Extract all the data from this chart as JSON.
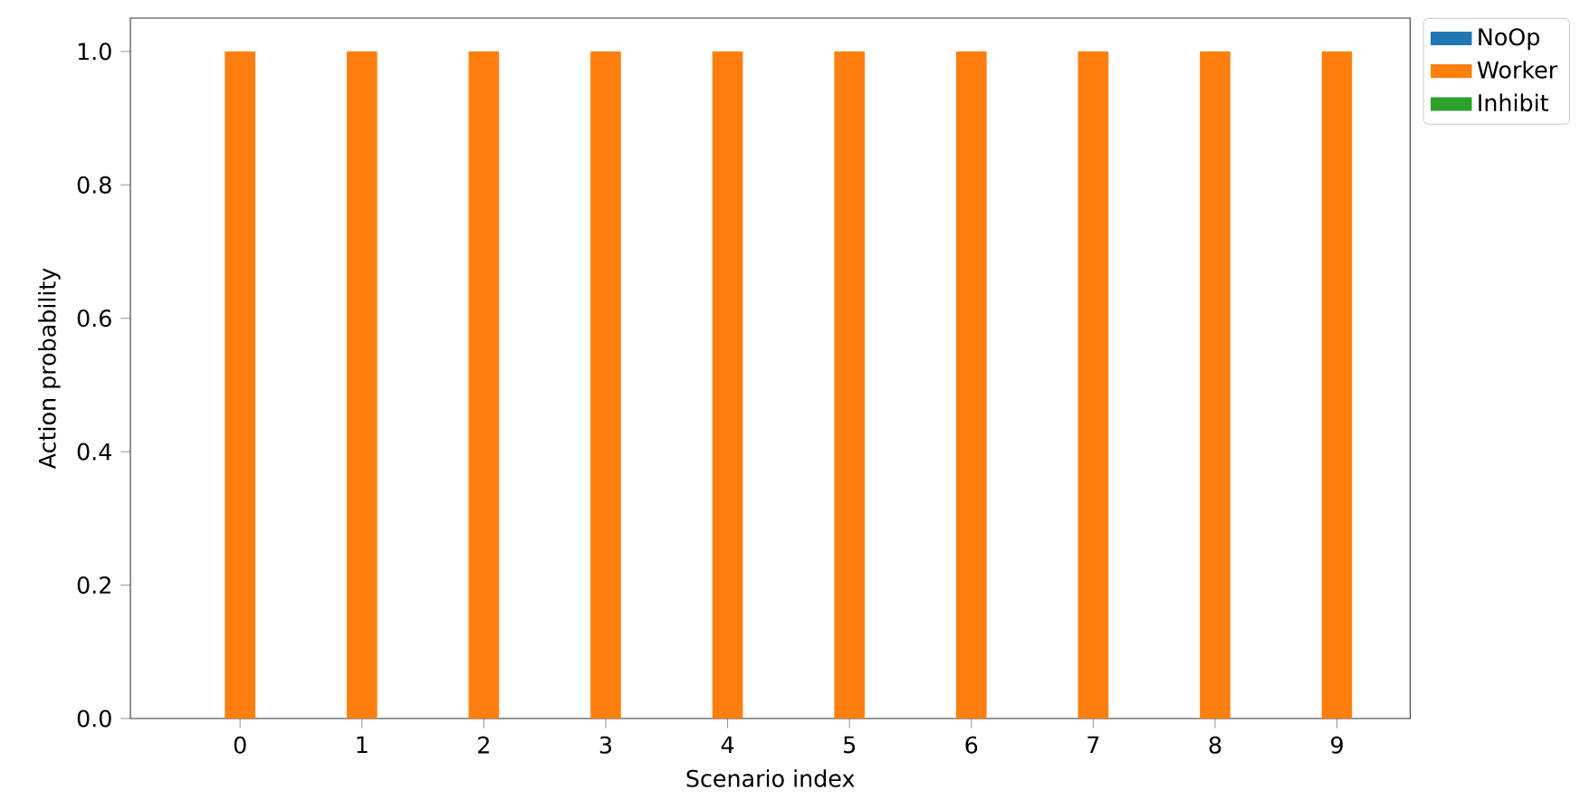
{
  "chart_data": {
    "type": "bar",
    "xlabel": "Scenario index",
    "ylabel": "Action probability",
    "categories": [
      "0",
      "1",
      "2",
      "3",
      "4",
      "5",
      "6",
      "7",
      "8",
      "9"
    ],
    "series": [
      {
        "name": "NoOp",
        "color": "#1f77b4",
        "values": [
          0,
          0,
          0,
          0,
          0,
          0,
          0,
          0,
          0,
          0
        ]
      },
      {
        "name": "Worker",
        "color": "#ff7f0e",
        "values": [
          1,
          1,
          1,
          1,
          1,
          1,
          1,
          1,
          1,
          1
        ]
      },
      {
        "name": "Inhibit",
        "color": "#2ca02c",
        "values": [
          0,
          0,
          0,
          0,
          0,
          0,
          0,
          0,
          0,
          0
        ]
      }
    ],
    "ylim": [
      0,
      1.05
    ],
    "yticks": [
      {
        "value": 0,
        "label": "0.0"
      },
      {
        "value": 0.2,
        "label": "0.2"
      },
      {
        "value": 0.4,
        "label": "0.4"
      },
      {
        "value": 0.6,
        "label": "0.6"
      },
      {
        "value": 0.8,
        "label": "0.8"
      },
      {
        "value": 1,
        "label": "1.0"
      }
    ],
    "legend": "top right",
    "grid": false
  }
}
